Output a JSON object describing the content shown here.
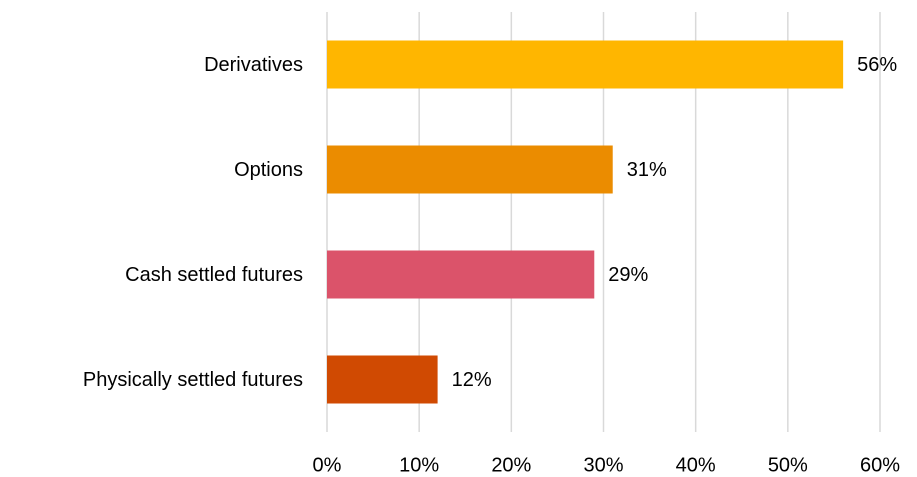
{
  "chart_data": {
    "type": "barh",
    "categories": [
      "Derivatives",
      "Options",
      "Cash settled futures",
      "Physically settled futures"
    ],
    "values": [
      56,
      31,
      29,
      12
    ],
    "value_labels": [
      "56%",
      "31%",
      "29%",
      "12%"
    ],
    "colors": [
      "#FFB600",
      "#EB8C00",
      "#DB536A",
      "#D04A02"
    ],
    "xlim": [
      0,
      60
    ],
    "xticks": [
      {
        "value": 0,
        "label": "0%"
      },
      {
        "value": 10,
        "label": "10%"
      },
      {
        "value": 20,
        "label": "20%"
      },
      {
        "value": 30,
        "label": "30%"
      },
      {
        "value": 40,
        "label": "40%"
      },
      {
        "value": 50,
        "label": "50%"
      },
      {
        "value": 60,
        "label": "60%"
      }
    ],
    "grid": true
  }
}
